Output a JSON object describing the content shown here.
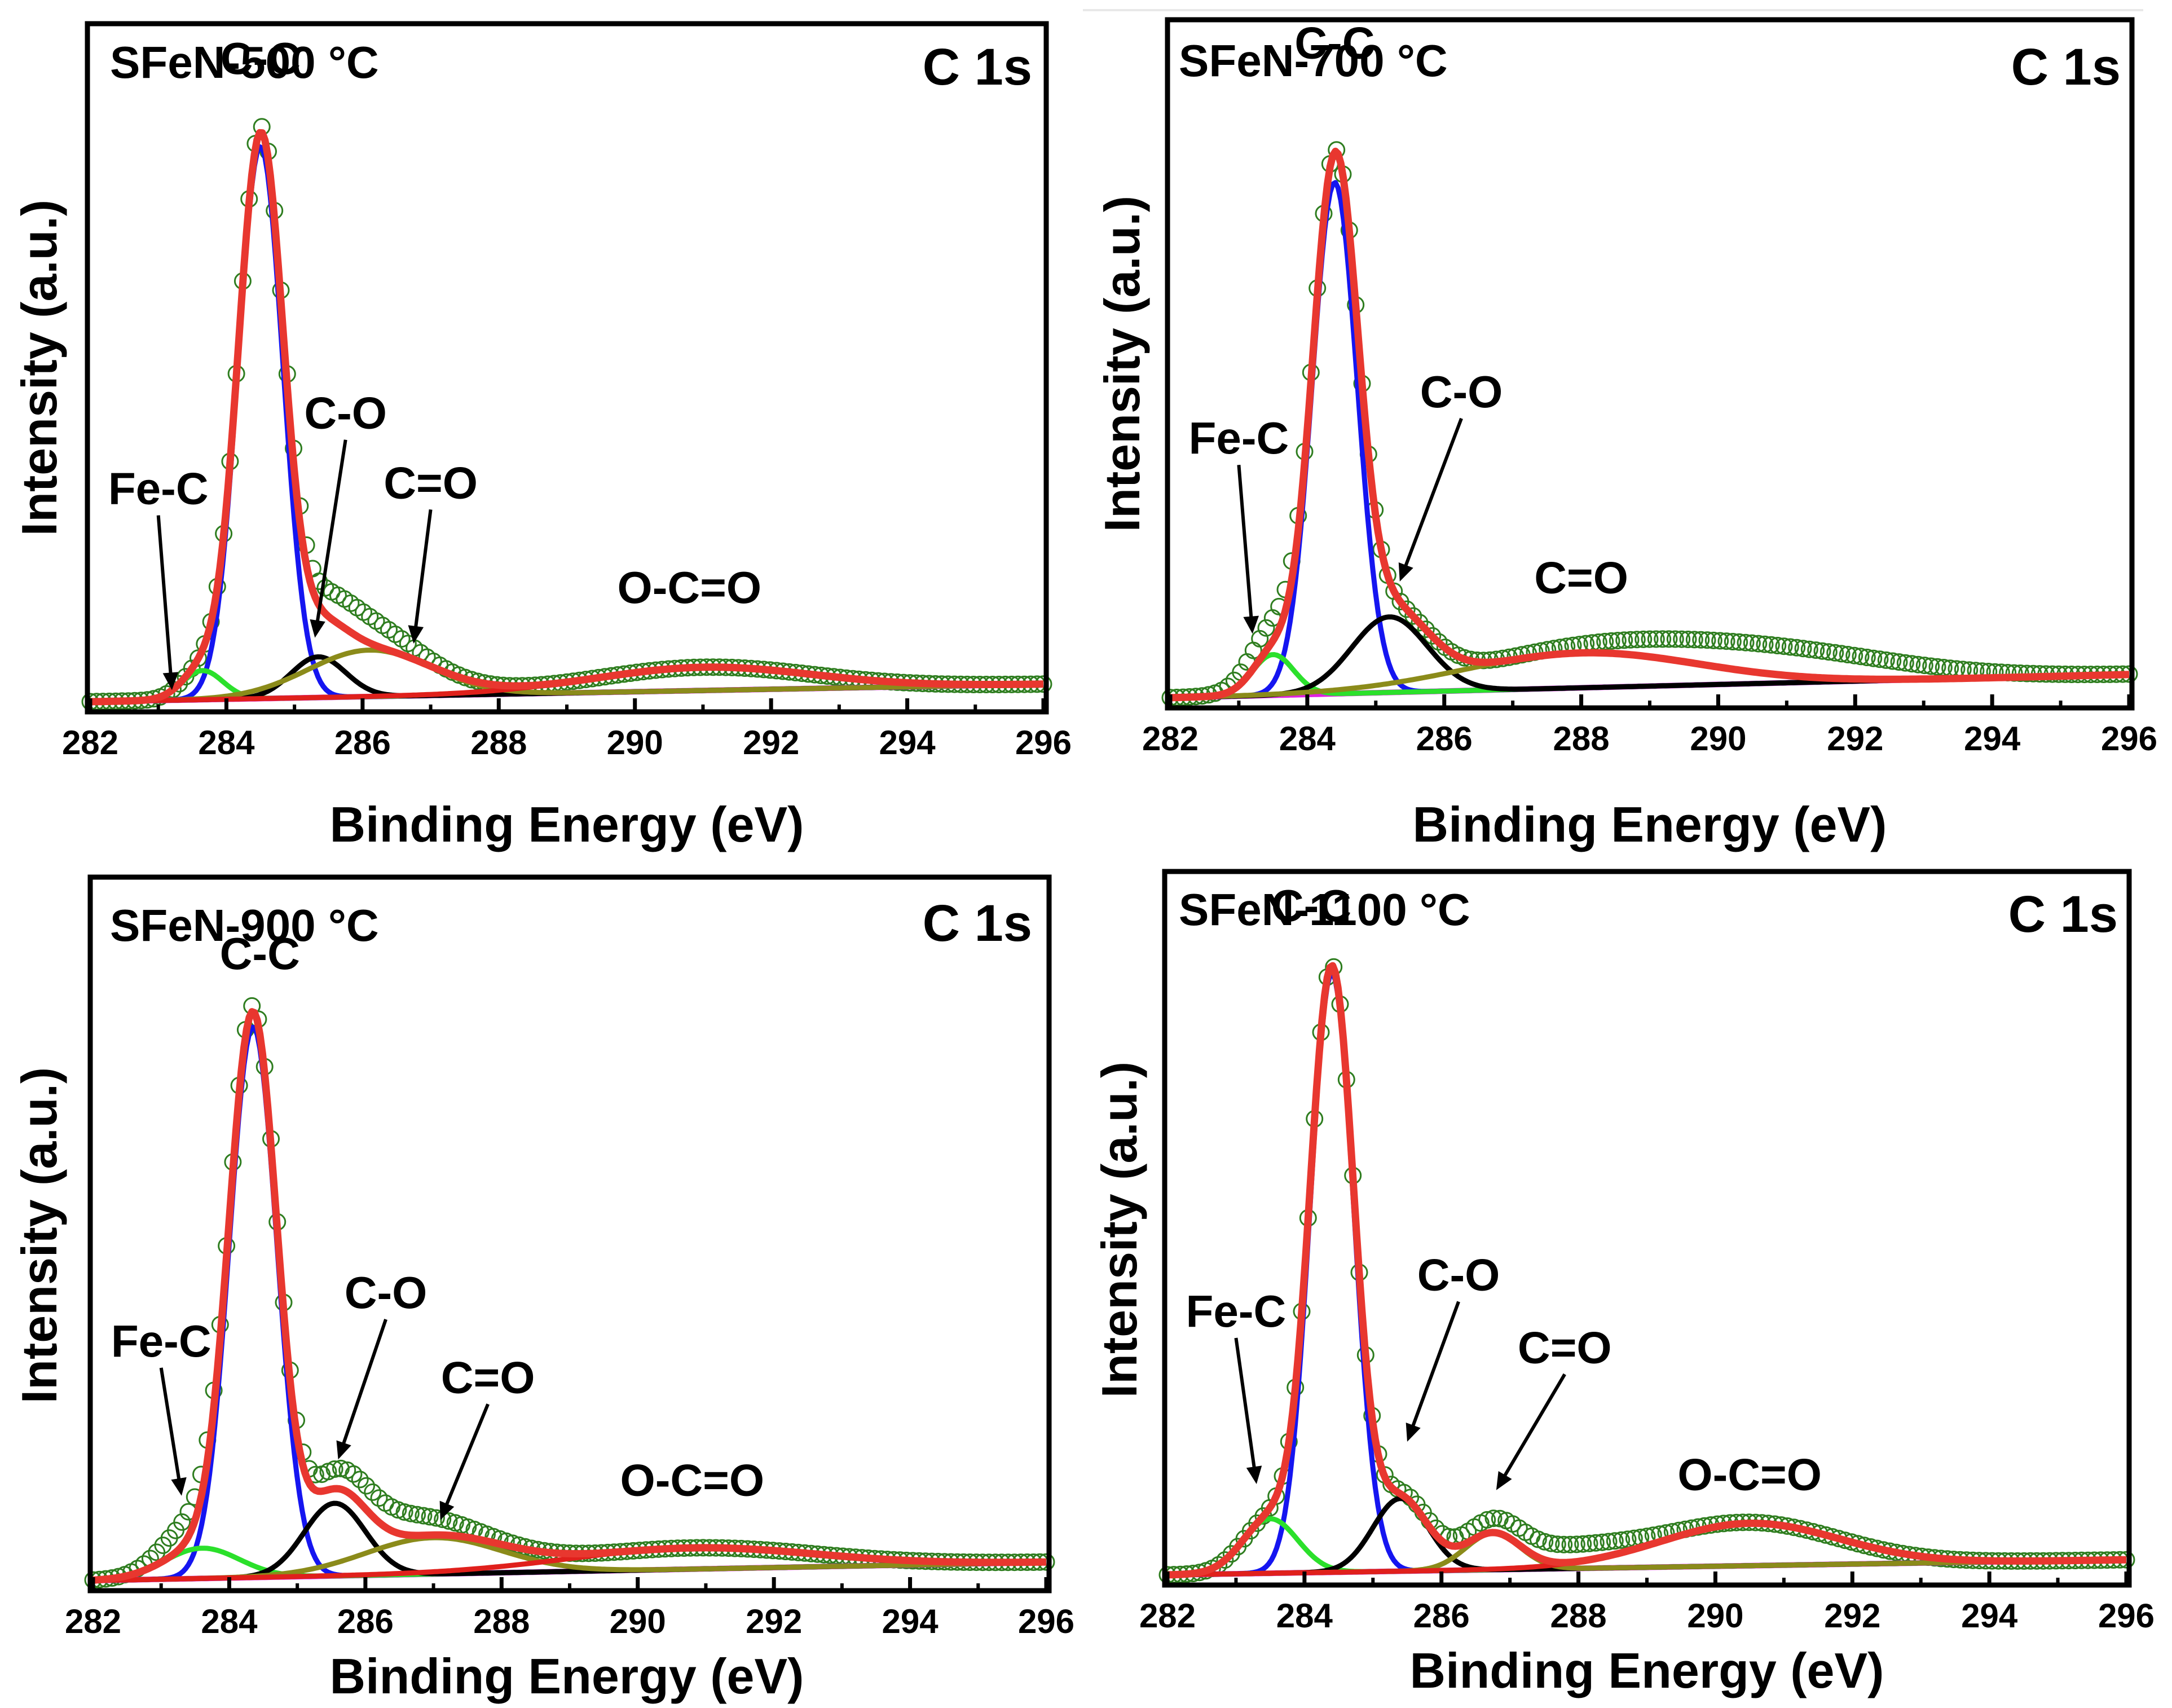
{
  "chart_data": [
    {
      "type": "line",
      "sample": "SFeN-500 °C",
      "region": "C 1s",
      "xlabel": "Binding Energy (eV)",
      "ylabel": "Intensity (a.u.)",
      "xlim": [
        282,
        296
      ],
      "ylim": [
        0,
        1.05
      ],
      "xticks": [
        "282",
        "284",
        "286",
        "288",
        "290",
        "292",
        "294",
        "296"
      ],
      "baseline": [
        0.0,
        0.03
      ],
      "components": [
        {
          "name": "C-C",
          "type": "gauss",
          "center": 284.5,
          "height": 0.95,
          "sigma": 0.33,
          "color": "#1515f0"
        },
        {
          "name": "Fe-C",
          "type": "gauss",
          "center": 283.65,
          "height": 0.05,
          "sigma": 0.3,
          "color": "#2be02b"
        },
        {
          "name": "C-O",
          "type": "gauss",
          "center": 285.35,
          "height": 0.07,
          "sigma": 0.4,
          "color": "#000000"
        },
        {
          "name": "C=O",
          "type": "gauss",
          "center": 286.1,
          "height": 0.08,
          "sigma": 0.9,
          "color": "#8b8b1a"
        },
        {
          "name": "O-C=O",
          "type": "gauss",
          "center": 291.0,
          "height": 0.04,
          "sigma": 1.6,
          "color": "#e0201c"
        }
      ],
      "measured_extra": [
        {
          "center": 285.8,
          "height": 0.05,
          "sigma": 0.7
        }
      ],
      "annotations": [
        {
          "text": "C-C",
          "x": 284.5,
          "y": 1.08
        },
        {
          "text": "Fe-C",
          "x": 283.0,
          "y": 0.34,
          "target": [
            283.2,
            0.02
          ]
        },
        {
          "text": "C-O",
          "x": 285.75,
          "y": 0.47,
          "target": [
            285.3,
            0.11
          ]
        },
        {
          "text": "C=O",
          "x": 287.0,
          "y": 0.35,
          "target": [
            286.75,
            0.1
          ]
        },
        {
          "text": "O-C=O",
          "x": 290.8,
          "y": 0.17
        }
      ]
    },
    {
      "type": "line",
      "sample": "SFeN-700 °C",
      "region": "C 1s",
      "xlabel": "Binding Energy (eV)",
      "ylabel": "Intensity (a.u.)",
      "xlim": [
        282,
        296
      ],
      "ylim": [
        0,
        1.05
      ],
      "xticks": [
        "282",
        "284",
        "286",
        "288",
        "290",
        "292",
        "294",
        "296"
      ],
      "baseline": [
        0.0,
        0.04
      ],
      "components": [
        {
          "name": "C-C",
          "type": "gauss",
          "center": 284.4,
          "height": 0.88,
          "sigma": 0.33,
          "color": "#1515f0"
        },
        {
          "name": "Fe-C",
          "type": "gauss",
          "center": 283.5,
          "height": 0.07,
          "sigma": 0.3,
          "color": "#2be02b"
        },
        {
          "name": "C-O",
          "type": "gauss",
          "center": 285.2,
          "height": 0.13,
          "sigma": 0.55,
          "color": "#000000"
        },
        {
          "name": "C=O",
          "type": "gauss",
          "center": 288.0,
          "height": 0.06,
          "sigma": 1.7,
          "color": "#8b8b1a"
        }
      ],
      "measured_extra": [
        {
          "center": 283.5,
          "height": 0.04,
          "sigma": 0.4
        },
        {
          "center": 290.8,
          "height": 0.05,
          "sigma": 1.8
        }
      ],
      "annotations": [
        {
          "text": "C-C",
          "x": 284.4,
          "y": 1.1
        },
        {
          "text": "Fe-C",
          "x": 283.0,
          "y": 0.42,
          "target": [
            283.2,
            0.11
          ]
        },
        {
          "text": "C-O",
          "x": 286.25,
          "y": 0.5,
          "target": [
            285.35,
            0.2
          ]
        },
        {
          "text": "C=O",
          "x": 288.0,
          "y": 0.18
        }
      ]
    },
    {
      "type": "line",
      "sample": "SFeN-900 °C",
      "region": "C 1s",
      "xlabel": "Binding Energy (eV)",
      "ylabel": "Intensity (a.u.)",
      "xlim": [
        282,
        296
      ],
      "ylim": [
        0,
        1.05
      ],
      "xticks": [
        "282",
        "284",
        "286",
        "288",
        "290",
        "292",
        "294",
        "296"
      ],
      "baseline": [
        0.0,
        0.03
      ],
      "components": [
        {
          "name": "C-C",
          "type": "gauss",
          "center": 284.35,
          "height": 0.91,
          "sigma": 0.35,
          "color": "#1515f0"
        },
        {
          "name": "Fe-C",
          "type": "gauss",
          "center": 283.6,
          "height": 0.05,
          "sigma": 0.55,
          "color": "#2be02b"
        },
        {
          "name": "C-O",
          "type": "gauss",
          "center": 285.55,
          "height": 0.12,
          "sigma": 0.45,
          "color": "#000000"
        },
        {
          "name": "C=O",
          "type": "gauss",
          "center": 287.0,
          "height": 0.06,
          "sigma": 1.0,
          "color": "#8b8b1a"
        },
        {
          "name": "O-C=O",
          "type": "gauss",
          "center": 290.8,
          "height": 0.035,
          "sigma": 1.8,
          "color": "#e0201c"
        }
      ],
      "measured_extra": [
        {
          "center": 283.4,
          "height": 0.04,
          "sigma": 0.4
        },
        {
          "center": 286.2,
          "height": 0.04,
          "sigma": 1.0
        }
      ],
      "annotations": [
        {
          "text": "C-C",
          "x": 284.45,
          "y": 1.01
        },
        {
          "text": "Fe-C",
          "x": 283.0,
          "y": 0.37,
          "target": [
            283.3,
            0.14
          ]
        },
        {
          "text": "C-O",
          "x": 286.3,
          "y": 0.45,
          "target": [
            285.6,
            0.2
          ]
        },
        {
          "text": "C=O",
          "x": 287.8,
          "y": 0.31,
          "target": [
            287.1,
            0.1
          ]
        },
        {
          "text": "O-C=O",
          "x": 290.8,
          "y": 0.14
        }
      ]
    },
    {
      "type": "line",
      "sample": "SFeN-1100 °C",
      "region": "C 1s",
      "xlabel": "Binding Energy (eV)",
      "ylabel": "Intensity (a.u.)",
      "xlim": [
        282,
        296
      ],
      "ylim": [
        0,
        1.05
      ],
      "xticks": [
        "282",
        "284",
        "286",
        "288",
        "290",
        "292",
        "294",
        "296"
      ],
      "baseline": [
        0.0,
        0.025
      ],
      "components": [
        {
          "name": "C-C",
          "type": "gauss",
          "center": 284.4,
          "height": 0.99,
          "sigma": 0.32,
          "color": "#1515f0"
        },
        {
          "name": "Fe-C",
          "type": "gauss",
          "center": 283.5,
          "height": 0.09,
          "sigma": 0.4,
          "color": "#2be02b"
        },
        {
          "name": "C-O",
          "type": "gauss",
          "center": 285.4,
          "height": 0.12,
          "sigma": 0.4,
          "color": "#000000"
        },
        {
          "name": "C=O",
          "type": "gauss",
          "center": 286.75,
          "height": 0.06,
          "sigma": 0.4,
          "color": "#8b8b1a"
        },
        {
          "name": "O-C=O",
          "type": "gauss",
          "center": 290.5,
          "height": 0.07,
          "sigma": 1.3,
          "color": "#e0201c"
        }
      ],
      "measured_extra": [
        {
          "center": 287.6,
          "height": 0.03,
          "sigma": 1.2
        }
      ],
      "annotations": [
        {
          "text": "C-C",
          "x": 284.1,
          "y": 1.08
        },
        {
          "text": "Fe-C",
          "x": 283.0,
          "y": 0.41,
          "target": [
            283.3,
            0.15
          ]
        },
        {
          "text": "C-O",
          "x": 286.25,
          "y": 0.47,
          "target": [
            285.5,
            0.22
          ]
        },
        {
          "text": "C=O",
          "x": 287.8,
          "y": 0.35,
          "target": [
            286.8,
            0.14
          ]
        },
        {
          "text": "O-C=O",
          "x": 290.5,
          "y": 0.14
        }
      ]
    }
  ],
  "style": {
    "envelope_color": "#e8372f",
    "background_color": "#e020e0",
    "data_marker_color": "#2e7d1f"
  }
}
